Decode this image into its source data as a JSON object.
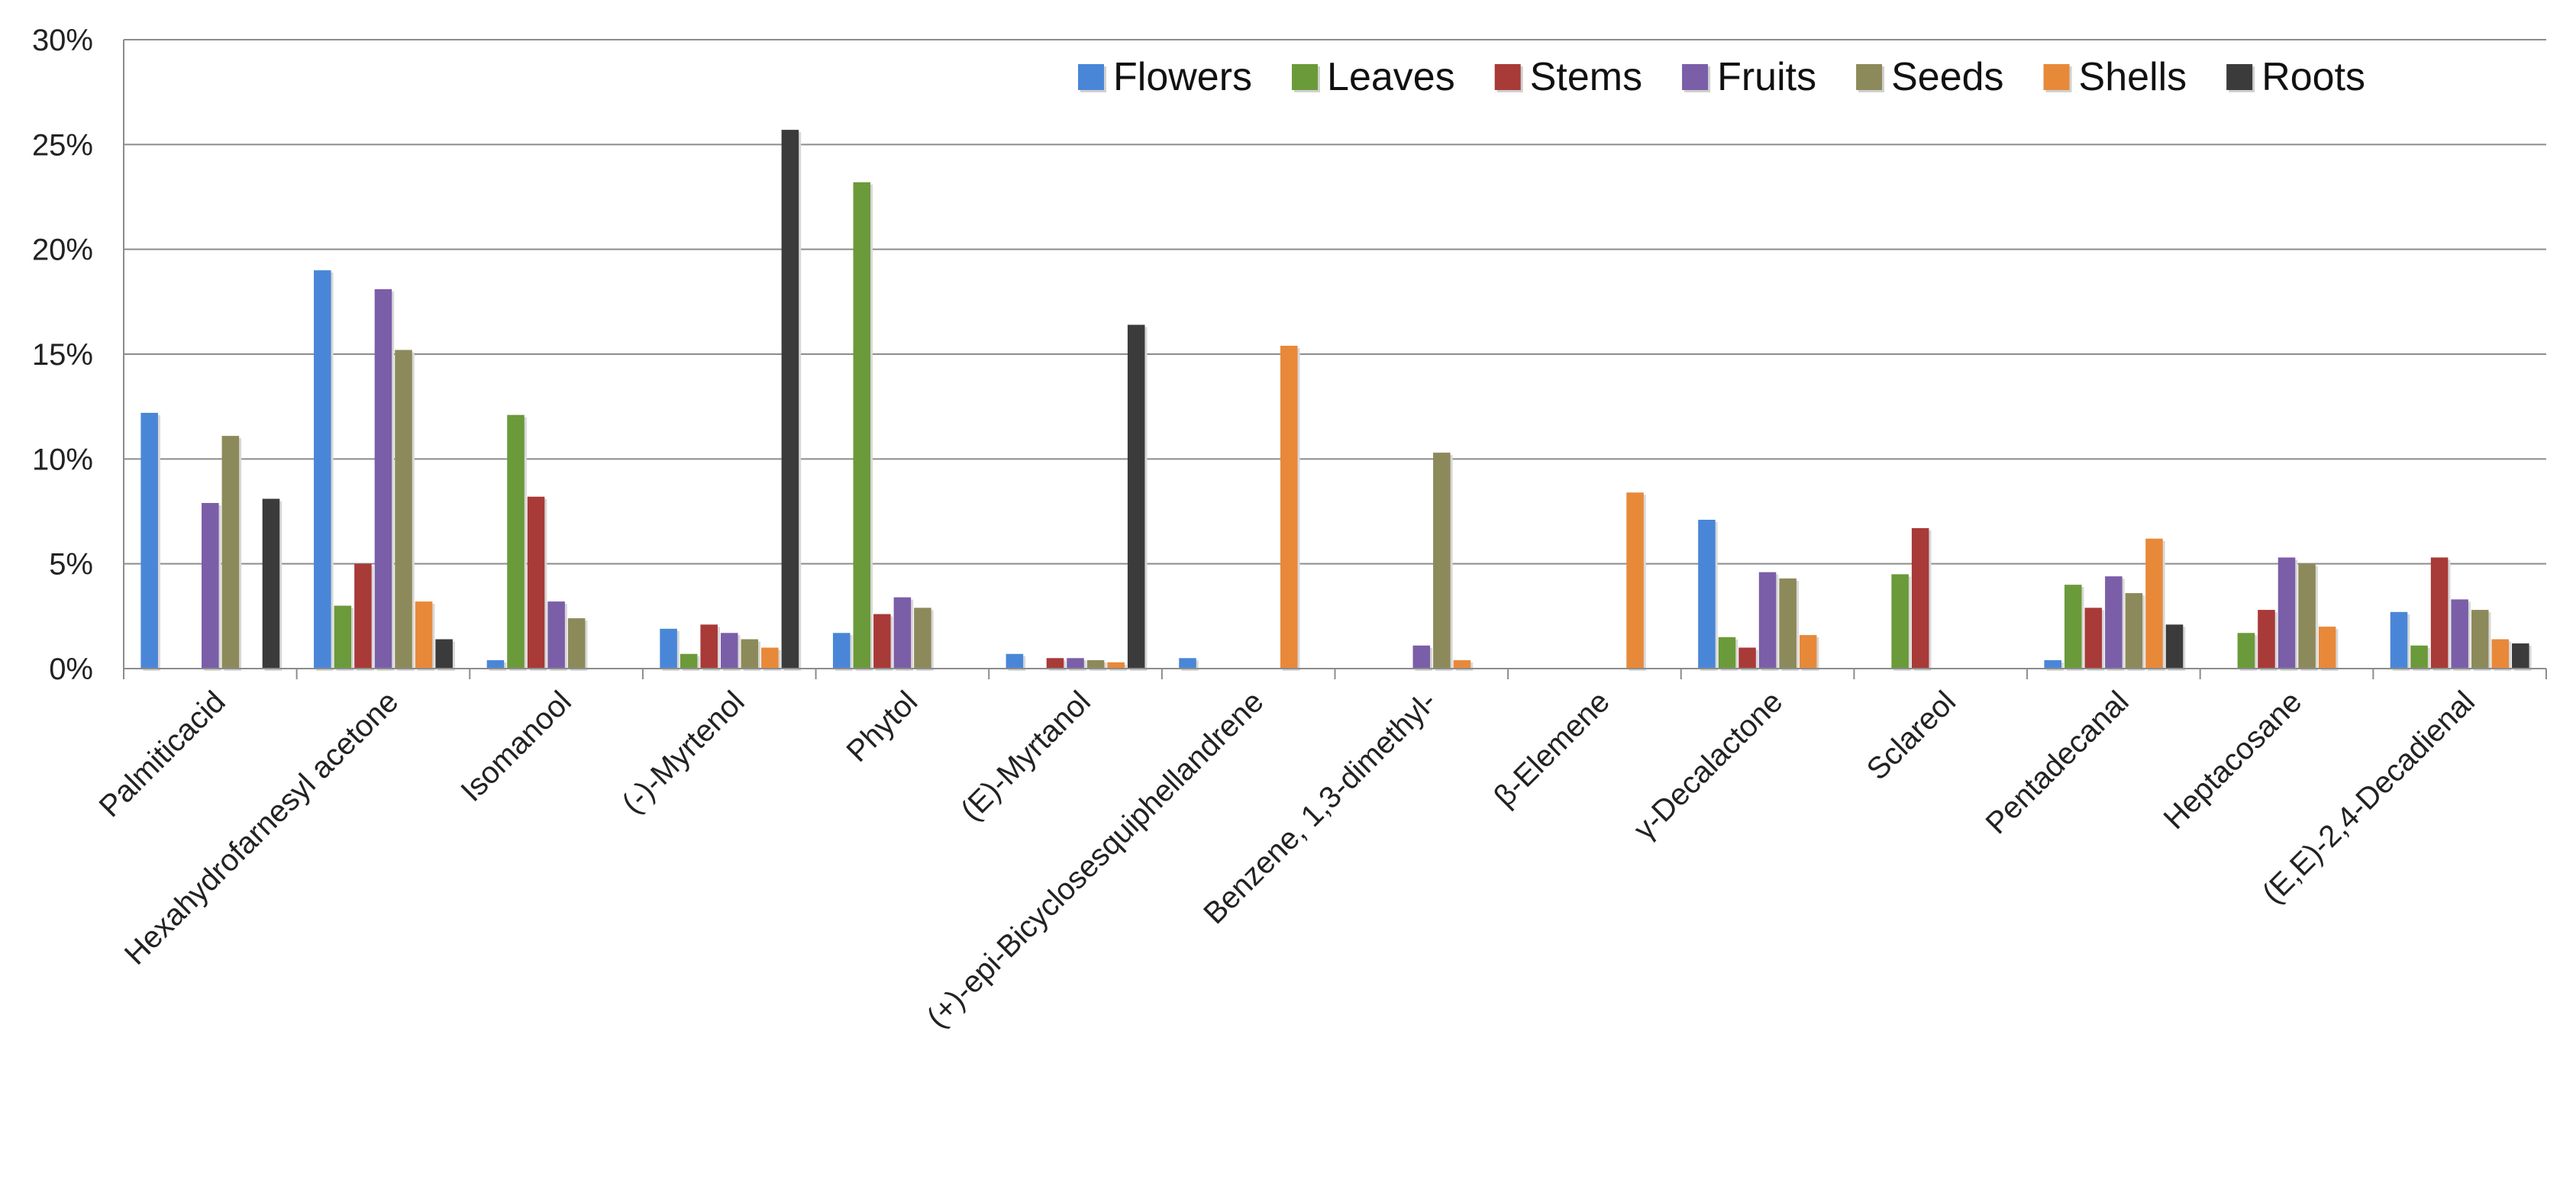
{
  "chart_data": {
    "type": "bar",
    "title": "",
    "xlabel": "",
    "ylabel": "",
    "ylim": [
      0,
      30
    ],
    "y_ticks": [
      0,
      5,
      10,
      15,
      20,
      25,
      30
    ],
    "y_tick_format": "percent",
    "grid": true,
    "legend_position": "top-right",
    "categories": [
      "Palmiticacid",
      "Hexahydrofarnesyl acetone",
      "Isomanool",
      "(-)-Myrtenol",
      "Phytol",
      "(E)-Myrtanol",
      "(+)-epi-Bicyclosesquiphellandrene",
      "Benzene, 1,3-dimethyl-",
      "β-Elemene",
      "γ-Decalactone",
      "Sclareol",
      "Pentadecanal",
      "Heptacosane",
      "(E,E)-2,4-Decadienal"
    ],
    "series": [
      {
        "name": "Flowers",
        "color": "#4a86d8",
        "values": [
          12.2,
          19.0,
          0.4,
          1.9,
          1.7,
          0.7,
          0.5,
          0,
          0,
          7.1,
          0,
          0.4,
          0,
          2.7
        ]
      },
      {
        "name": "Leaves",
        "color": "#6b9a3a",
        "values": [
          0,
          3.0,
          12.1,
          0.7,
          23.2,
          0,
          0,
          0,
          0,
          1.5,
          4.5,
          4.0,
          1.7,
          1.1
        ]
      },
      {
        "name": "Stems",
        "color": "#a83a38",
        "values": [
          0,
          5.0,
          8.2,
          2.1,
          2.6,
          0.5,
          0,
          0,
          0,
          1.0,
          6.7,
          2.9,
          2.8,
          5.3
        ]
      },
      {
        "name": "Fruits",
        "color": "#7b5ea8",
        "values": [
          7.9,
          18.1,
          3.2,
          1.7,
          3.4,
          0.5,
          0,
          1.1,
          0,
          4.6,
          0,
          4.4,
          5.3,
          3.3
        ]
      },
      {
        "name": "Seeds",
        "color": "#8c8a5a",
        "values": [
          11.1,
          15.2,
          2.4,
          1.4,
          2.9,
          0.4,
          0,
          10.3,
          0,
          4.3,
          0,
          3.6,
          5.0,
          2.8
        ]
      },
      {
        "name": "Shells",
        "color": "#e8893a",
        "values": [
          0,
          3.2,
          0,
          1.0,
          0,
          0.3,
          15.4,
          0.4,
          8.4,
          1.6,
          0,
          6.2,
          2.0,
          1.4
        ]
      },
      {
        "name": "Roots",
        "color": "#3b3b3b",
        "values": [
          8.1,
          1.4,
          0,
          25.7,
          0,
          16.4,
          0,
          0,
          0,
          0,
          0,
          2.1,
          0,
          1.2
        ]
      }
    ]
  }
}
